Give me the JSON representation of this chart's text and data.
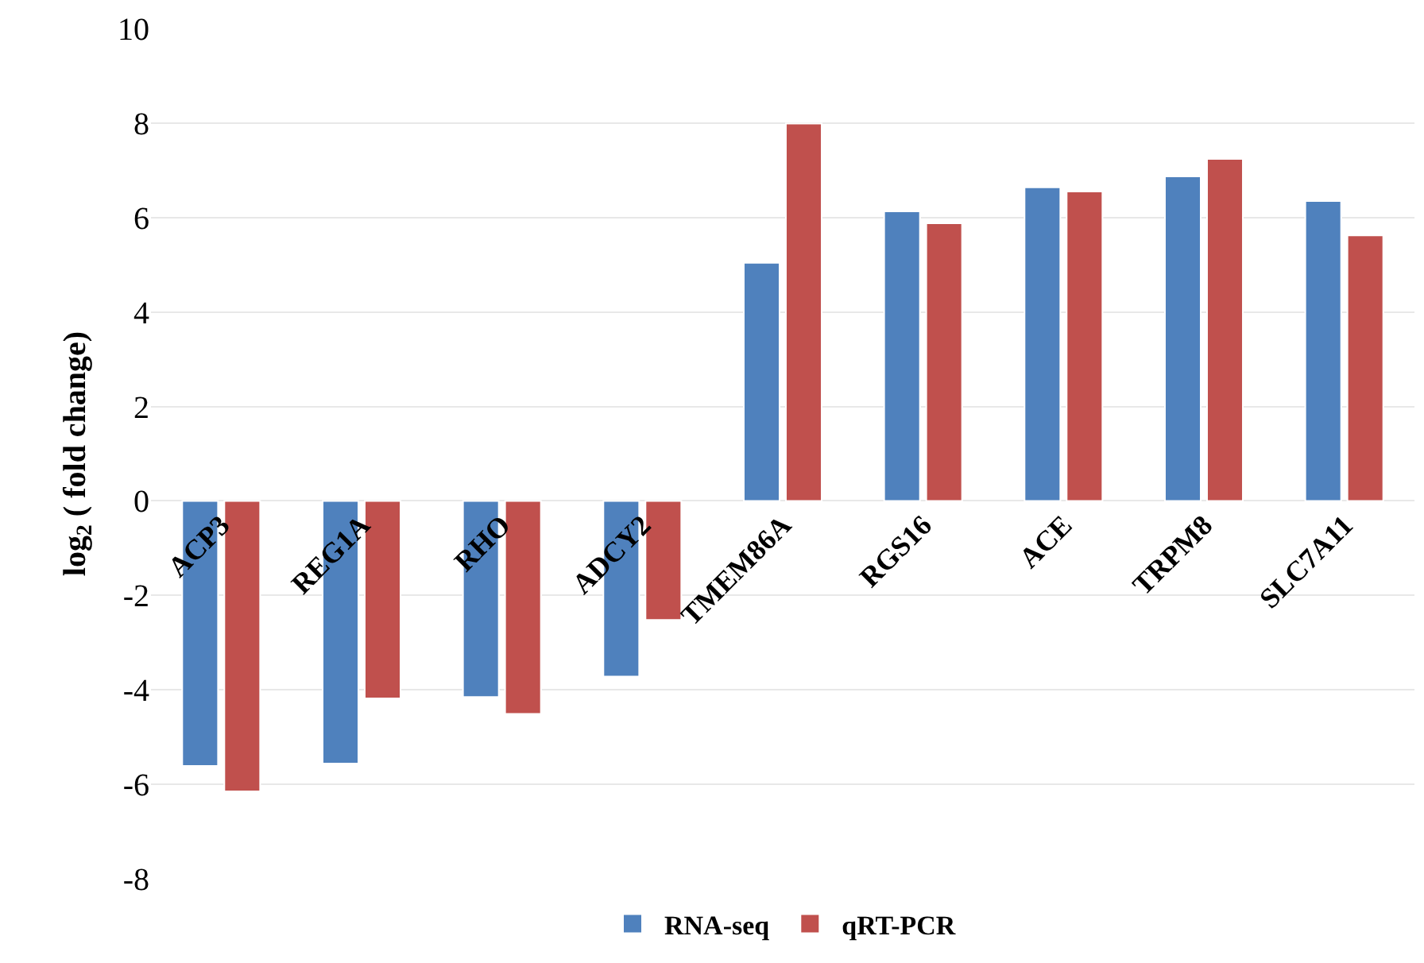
{
  "chart_data": {
    "type": "bar",
    "ylabel": "log$_{2}$ ( fold change)",
    "categories": [
      "ACP3",
      "REG1A",
      "RHO",
      "ADCY2",
      "TMEM86A",
      "RGS16",
      "ACE",
      "TRPM8",
      "SLC7A11"
    ],
    "series": [
      {
        "name": "RNA-seq",
        "color": "#4f81bd",
        "values": [
          -5.61,
          -5.56,
          -4.15,
          -3.72,
          5.04,
          6.13,
          6.64,
          6.87,
          6.35
        ]
      },
      {
        "name": "qRT-PCR",
        "color": "#c0504d",
        "values": [
          -6.15,
          -4.18,
          -4.51,
          -2.52,
          7.99,
          5.88,
          6.55,
          7.24,
          5.62
        ]
      }
    ],
    "ylim": [
      -8,
      10
    ],
    "yticks": [
      -8,
      -6,
      -4,
      -2,
      0,
      2,
      4,
      6,
      8,
      10
    ],
    "grid": "y",
    "legend": "bottom"
  }
}
